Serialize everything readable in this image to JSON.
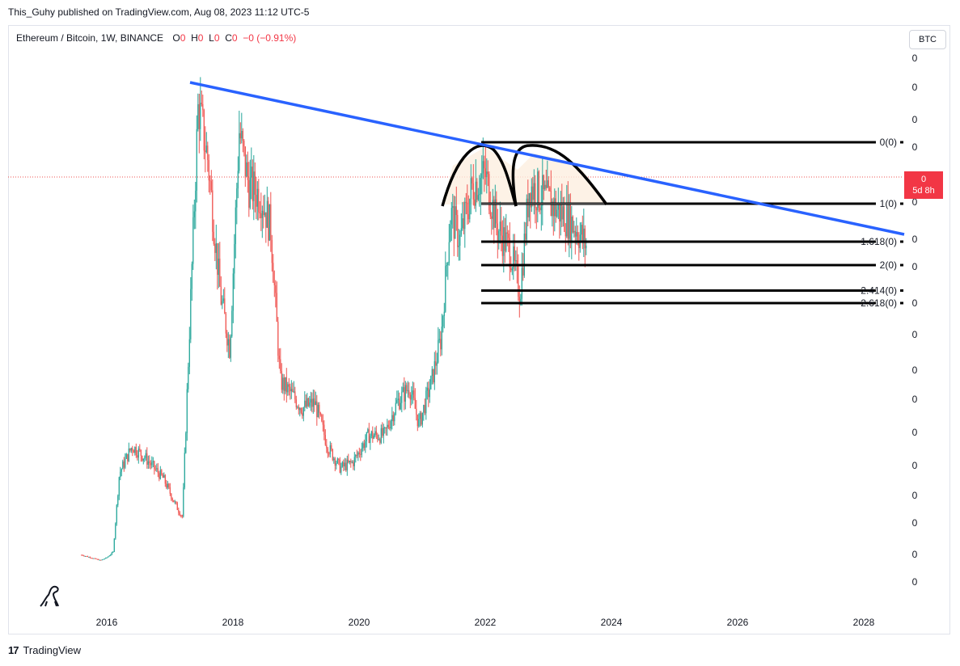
{
  "header": {
    "published_by": "This_Guhy published on TradingView.com, Aug 08, 2023 11:12 UTC-5"
  },
  "legend": {
    "symbol": "Ethereum / Bitcoin, 1W, BINANCE",
    "o_label": "O",
    "o_val": "0",
    "h_label": "H",
    "h_val": "0",
    "l_label": "L",
    "l_val": "0",
    "c_label": "C",
    "c_val": "0",
    "change": "−0 (−0.91%)"
  },
  "currency_button": "BTC",
  "price_tag": {
    "value": "0",
    "countdown": "5d 8h"
  },
  "footer": {
    "brand": "TradingView",
    "logo": "17"
  },
  "colors": {
    "up": "#26a69a",
    "down": "#ef5350",
    "trendline": "#2962ff",
    "fib": "#000000",
    "tag": "#f23645"
  },
  "chart_data": {
    "type": "candlestick",
    "title": "Ethereum / Bitcoin, 1W, BINANCE",
    "x_ticks": [
      "2016",
      "2018",
      "2020",
      "2022",
      "2024",
      "2026",
      "2028"
    ],
    "y_ticks": [
      "0",
      "0",
      "0",
      "0",
      "0",
      "0",
      "0",
      "0",
      "0",
      "0",
      "0",
      "0",
      "0",
      "0",
      "0",
      "0",
      "0",
      "0"
    ],
    "fib_levels": [
      {
        "label": "0(0)",
        "ratio": 0
      },
      {
        "label": "1(0)",
        "ratio": 1
      },
      {
        "label": "1.618(0)",
        "ratio": 1.618
      },
      {
        "label": "2(0)",
        "ratio": 2
      },
      {
        "label": "2.414(0)",
        "ratio": 2.414
      },
      {
        "label": "2.618(0)",
        "ratio": 2.618
      }
    ],
    "price_profile": [
      [
        2015.6,
        0.002
      ],
      [
        2015.75,
        0.0015
      ],
      [
        2015.9,
        0.001
      ],
      [
        2016.0,
        0.0015
      ],
      [
        2016.1,
        0.0025
      ],
      [
        2016.2,
        0.017
      ],
      [
        2016.4,
        0.022
      ],
      [
        2016.6,
        0.02
      ],
      [
        2016.9,
        0.016
      ],
      [
        2017.1,
        0.011
      ],
      [
        2017.2,
        0.009
      ],
      [
        2017.3,
        0.04
      ],
      [
        2017.45,
        0.085
      ],
      [
        2017.6,
        0.075
      ],
      [
        2017.8,
        0.05
      ],
      [
        2017.95,
        0.04
      ],
      [
        2018.1,
        0.08
      ],
      [
        2018.25,
        0.07
      ],
      [
        2018.45,
        0.068
      ],
      [
        2018.6,
        0.062
      ],
      [
        2018.75,
        0.034
      ],
      [
        2018.9,
        0.032
      ],
      [
        2019.1,
        0.029
      ],
      [
        2019.3,
        0.03
      ],
      [
        2019.5,
        0.022
      ],
      [
        2019.7,
        0.018
      ],
      [
        2019.9,
        0.019
      ],
      [
        2020.15,
        0.024
      ],
      [
        2020.4,
        0.024
      ],
      [
        2020.6,
        0.03
      ],
      [
        2020.8,
        0.033
      ],
      [
        2020.95,
        0.026
      ],
      [
        2021.15,
        0.034
      ],
      [
        2021.3,
        0.042
      ],
      [
        2021.45,
        0.065
      ],
      [
        2021.6,
        0.06
      ],
      [
        2021.8,
        0.07
      ],
      [
        2022.0,
        0.072
      ],
      [
        2022.2,
        0.062
      ],
      [
        2022.4,
        0.058
      ],
      [
        2022.55,
        0.05
      ],
      [
        2022.7,
        0.07
      ],
      [
        2022.9,
        0.068
      ],
      [
        2023.1,
        0.066
      ],
      [
        2023.3,
        0.064
      ],
      [
        2023.45,
        0.062
      ],
      [
        2023.6,
        0.059
      ]
    ]
  }
}
